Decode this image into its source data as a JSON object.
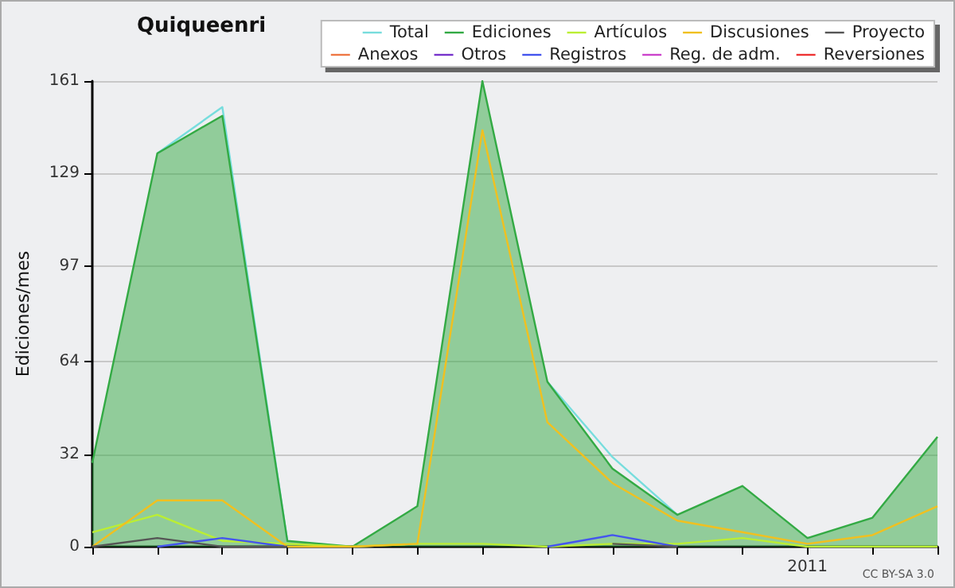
{
  "chart_data": {
    "type": "line",
    "title": "Quiqueenri",
    "ylabel": "Ediciones/mes",
    "categories": [
      null,
      null,
      null,
      null,
      null,
      null,
      null,
      null,
      null,
      null,
      null,
      "2011",
      null,
      null
    ],
    "series": [
      {
        "name": "Total",
        "color": "#77dddd",
        "values": [
          null,
          136,
          152,
          2,
          null,
          null,
          null,
          57,
          31,
          11,
          null,
          null,
          null,
          null
        ]
      },
      {
        "name": "Anexos",
        "color": "#ee7744",
        "values": [
          null,
          null,
          null,
          null,
          null,
          null,
          null,
          null,
          null,
          null,
          null,
          null,
          null,
          null
        ]
      },
      {
        "name": "Ediciones",
        "color": "#33aa44",
        "type": "area",
        "values": [
          29,
          136,
          149,
          2,
          0,
          14,
          161,
          57,
          27,
          11,
          21,
          3,
          10,
          38
        ]
      },
      {
        "name": "Otros",
        "color": "#7733cc",
        "values": [
          null,
          null,
          null,
          null,
          null,
          null,
          null,
          null,
          null,
          null,
          null,
          null,
          null,
          null
        ]
      },
      {
        "name": "Artículos",
        "color": "#bbee33",
        "values": [
          5,
          11,
          2,
          1,
          0,
          1,
          1,
          0,
          1,
          1,
          3,
          0,
          0,
          0
        ]
      },
      {
        "name": "Registros",
        "color": "#4455ee",
        "values": [
          null,
          0,
          3,
          0,
          null,
          null,
          null,
          0,
          4,
          0,
          null,
          null,
          null,
          null
        ]
      },
      {
        "name": "Discusiones",
        "color": "#f0c020",
        "values": [
          0,
          16,
          16,
          0,
          0,
          1,
          144,
          43,
          22,
          9,
          5,
          1,
          4,
          14
        ]
      },
      {
        "name": "Reg. de adm.",
        "color": "#cc44cc",
        "values": [
          null,
          null,
          null,
          null,
          null,
          null,
          null,
          null,
          null,
          null,
          null,
          null,
          null,
          null
        ]
      },
      {
        "name": "Proyecto",
        "color": "#555555",
        "values": [
          0,
          3,
          0,
          0,
          null,
          null,
          null,
          null,
          1,
          0,
          null,
          null,
          null,
          null
        ]
      },
      {
        "name": "Reversiones",
        "color": "#ee3333",
        "values": [
          null,
          null,
          null,
          null,
          null,
          null,
          null,
          null,
          null,
          null,
          null,
          null,
          null,
          null
        ]
      }
    ],
    "ylim": [
      0,
      161
    ],
    "yticks": [
      0,
      32,
      64,
      97,
      129,
      161
    ],
    "grid": "y",
    "legend": "top right",
    "marker": "none",
    "line_style": "solid",
    "annotations": [
      "CC BY-SA 3.0"
    ]
  }
}
